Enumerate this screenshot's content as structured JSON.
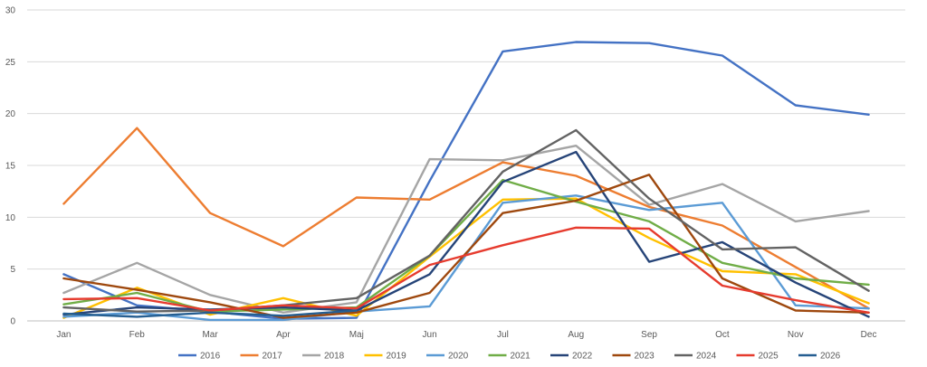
{
  "chart_data": {
    "type": "line",
    "categories": [
      "Jan",
      "Feb",
      "Mar",
      "Apr",
      "Maj",
      "Jun",
      "Jul",
      "Aug",
      "Sep",
      "Oct",
      "Nov",
      "Dec"
    ],
    "ylim": [
      0,
      30
    ],
    "yticks": [
      0,
      5,
      10,
      15,
      20,
      25,
      30
    ],
    "grid": true,
    "legend_position": "bottom",
    "series": [
      {
        "name": "2016",
        "color": "#4472C4",
        "values": [
          4.5,
          1.5,
          0.9,
          0.2,
          0.3,
          13.5,
          26.0,
          26.9,
          26.8,
          25.6,
          20.8,
          19.9
        ]
      },
      {
        "name": "2017",
        "color": "#ED7D31",
        "values": [
          11.3,
          18.6,
          10.4,
          7.2,
          11.9,
          11.7,
          15.3,
          14.0,
          11.0,
          9.2,
          5.2,
          1.2
        ]
      },
      {
        "name": "2018",
        "color": "#A5A5A5",
        "values": [
          2.7,
          5.6,
          2.5,
          0.8,
          1.8,
          15.6,
          15.5,
          16.9,
          11.2,
          13.2,
          9.6,
          10.6
        ]
      },
      {
        "name": "2019",
        "color": "#FFC000",
        "values": [
          0.3,
          3.2,
          0.6,
          2.2,
          0.5,
          6.2,
          11.7,
          11.8,
          8.0,
          4.8,
          4.5,
          1.7
        ]
      },
      {
        "name": "2020",
        "color": "#5B9BD5",
        "values": [
          0.4,
          0.8,
          0.1,
          0.1,
          0.9,
          1.4,
          11.4,
          12.1,
          10.7,
          11.4,
          1.5,
          1.2
        ]
      },
      {
        "name": "2021",
        "color": "#70AD47",
        "values": [
          1.6,
          2.7,
          0.9,
          1.1,
          1.3,
          6.3,
          13.6,
          11.5,
          9.6,
          5.6,
          4.1,
          3.5
        ]
      },
      {
        "name": "2022",
        "color": "#264478",
        "values": [
          0.6,
          1.3,
          1.1,
          1.3,
          1.0,
          4.5,
          13.4,
          16.3,
          5.7,
          7.6,
          3.7,
          0.4
        ]
      },
      {
        "name": "2023",
        "color": "#9E480E",
        "values": [
          4.1,
          3.0,
          1.8,
          0.3,
          0.8,
          2.7,
          10.4,
          11.6,
          14.1,
          4.1,
          1.0,
          0.8
        ]
      },
      {
        "name": "2024",
        "color": "#636363",
        "values": [
          1.3,
          0.9,
          1.0,
          1.5,
          2.2,
          6.3,
          14.4,
          18.4,
          11.8,
          6.9,
          7.1,
          2.9
        ]
      },
      {
        "name": "2025",
        "color": "#E63B2E",
        "values": [
          2.1,
          2.2,
          1.0,
          1.5,
          1.2,
          5.4,
          7.3,
          9.0,
          8.9,
          3.4,
          2.0,
          0.8
        ]
      },
      {
        "name": "2026",
        "color": "#255E91",
        "values": [
          0.7,
          0.4,
          0.8,
          0.5,
          1.0,
          null,
          null,
          null,
          null,
          null,
          null,
          null
        ]
      }
    ]
  }
}
